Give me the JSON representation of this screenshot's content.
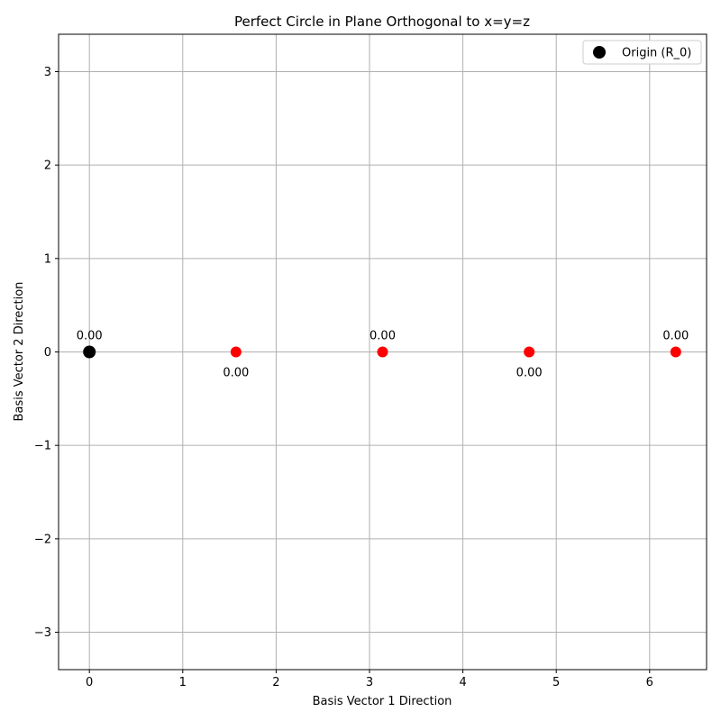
{
  "chart_data": {
    "type": "scatter",
    "title": "Perfect Circle in Plane Orthogonal to x=y=z",
    "xlabel": "Basis Vector 1 Direction",
    "ylabel": "Basis Vector 2 Direction",
    "xlim": [
      -0.33,
      6.61
    ],
    "ylim": [
      -3.4,
      3.4
    ],
    "xticks": [
      0,
      1,
      2,
      3,
      4,
      5,
      6
    ],
    "yticks": [
      -3,
      -2,
      -1,
      0,
      1,
      2,
      3
    ],
    "xtick_labels": [
      "0",
      "1",
      "2",
      "3",
      "4",
      "5",
      "6"
    ],
    "ytick_labels": [
      "−3",
      "−2",
      "−1",
      "0",
      "1",
      "2",
      "3"
    ],
    "grid": true,
    "legend_position": "top-right",
    "series": [
      {
        "color": "#ff0000",
        "points": [
          {
            "x": 0.0,
            "y": 0.0,
            "label": "0.00",
            "label_pos": "above"
          },
          {
            "x": 1.57,
            "y": 0.0,
            "label": "0.00",
            "label_pos": "below"
          },
          {
            "x": 3.14,
            "y": 0.0,
            "label": "0.00",
            "label_pos": "above"
          },
          {
            "x": 4.71,
            "y": 0.0,
            "label": "0.00",
            "label_pos": "below"
          },
          {
            "x": 6.28,
            "y": 0.0,
            "label": "0.00",
            "label_pos": "above"
          }
        ]
      },
      {
        "name": "Origin (R_0)",
        "color": "#000000",
        "points": [
          {
            "x": 0.0,
            "y": 0.0
          }
        ]
      }
    ],
    "legend": [
      {
        "label": "Origin (R_0)",
        "color": "#000000"
      }
    ]
  }
}
